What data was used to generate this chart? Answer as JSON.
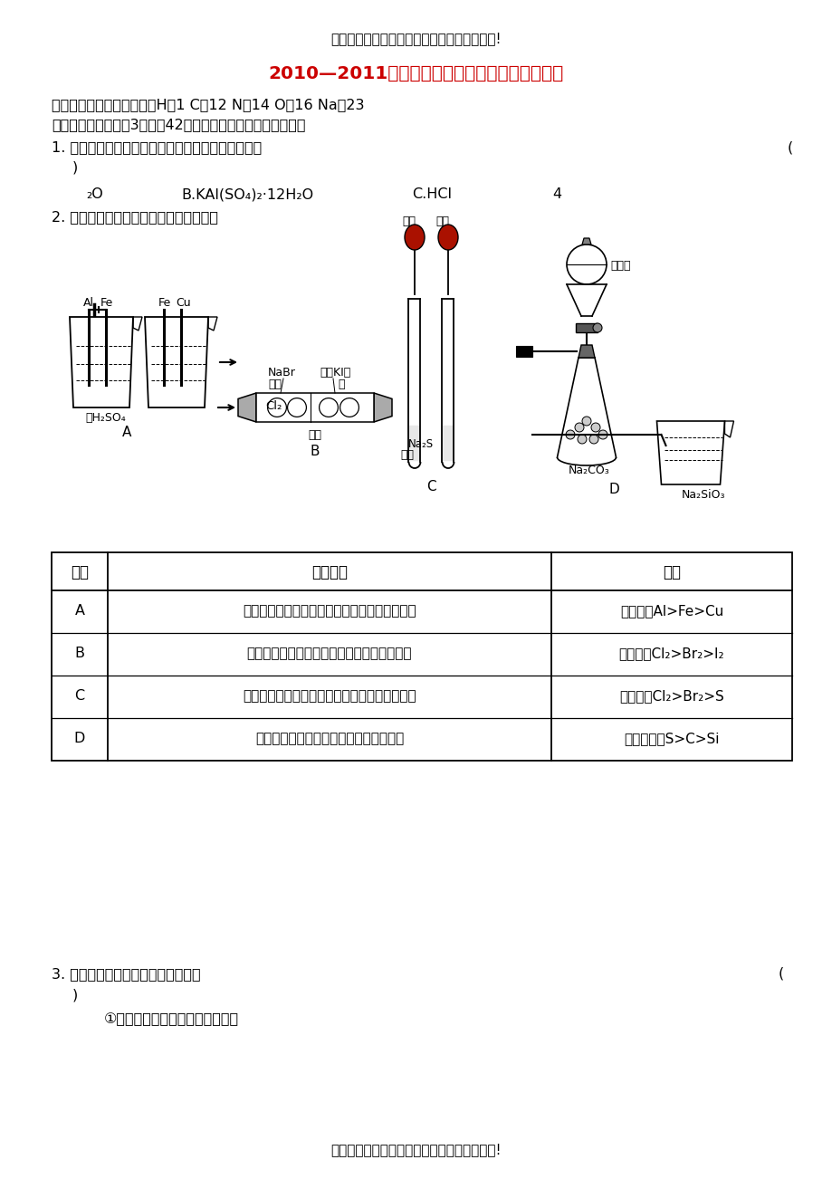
{
  "welcome_text": "欢迎阅读本文档，希望本文档能对您有所帮助!",
  "title": "2010—2011学年度上期高三第三次考试化学试题",
  "atomic_mass": "可能用到的相对原子质量：H：1 C：12 N：14 O：16 Na：23",
  "section1": "一、选择题（每小题3分，全42分，每小题只有一个正确选项）",
  "q1_text": "1. 下列物质中，属于电解质，但在液态时不导电的是",
  "q2_text": "2. 根据下列实验现象，所得结论正确的是",
  "table_header": [
    "实验",
    "实验现象",
    "结论"
  ],
  "table_rows": [
    [
      "A",
      "左烧杯中铁表面有气泡，右烧杯中铜表面有气泡",
      "活动性：Al>Fe>Cu"
    ],
    [
      "B",
      "左边棉花团变为橙黄色，右边棉花团变为蓝色",
      "氧化性：Cl₂>Br₂>I₂"
    ],
    [
      "C",
      "左边溶液产生黄色沉淠，右边溶液产生黄色沉淠",
      "氧化性：Cl₂>Br₂>S"
    ],
    [
      "D",
      "锥形瓶中有气体产生，烧杯中溶液变浑浊",
      "非金属性：S>C>Si"
    ]
  ],
  "q3_text": "3. 下列有关实验的叙述中，正确的是",
  "q3_sub": "①用湿润的蓝色石蕊试纸检验氨气",
  "footer": "感谢阅读本文档，希望本文档能对您有所帮助!",
  "bg_color": "#ffffff",
  "text_color": "#000000",
  "title_color": "#cc0000",
  "border_color": "#000000"
}
